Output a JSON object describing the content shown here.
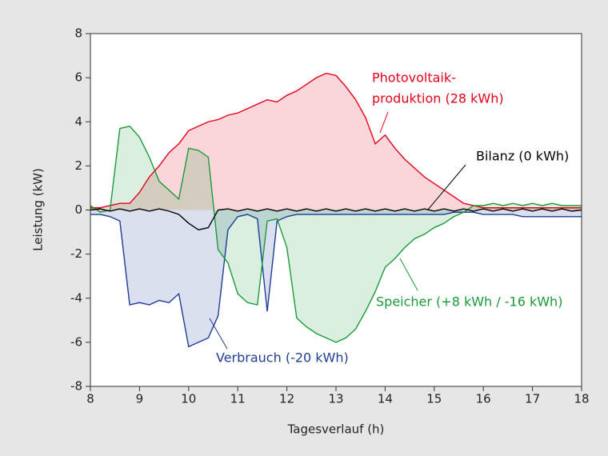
{
  "chart_data": {
    "type": "line",
    "xlabel": "Tagesverlauf (h)",
    "ylabel": "Leistung (kW)",
    "x": [
      8.0,
      8.2,
      8.4,
      8.6,
      8.8,
      9.0,
      9.2,
      9.4,
      9.6,
      9.8,
      10.0,
      10.2,
      10.4,
      10.6,
      10.8,
      11.0,
      11.2,
      11.4,
      11.6,
      11.8,
      12.0,
      12.2,
      12.4,
      12.6,
      12.8,
      13.0,
      13.2,
      13.4,
      13.6,
      13.8,
      14.0,
      14.2,
      14.4,
      14.6,
      14.8,
      15.0,
      15.2,
      15.4,
      15.6,
      15.8,
      16.0,
      16.2,
      16.4,
      16.6,
      16.8,
      17.0,
      17.2,
      17.4,
      17.6,
      17.8,
      18.0
    ],
    "series": [
      {
        "name": "Photovoltaikproduktion",
        "color": "#e3001b",
        "fill": true,
        "values": [
          0.1,
          0.1,
          0.2,
          0.3,
          0.3,
          0.8,
          1.5,
          2.0,
          2.6,
          3.0,
          3.6,
          3.8,
          4.0,
          4.1,
          4.3,
          4.4,
          4.6,
          4.8,
          5.0,
          4.9,
          5.2,
          5.4,
          5.7,
          6.0,
          6.2,
          6.1,
          5.6,
          5.0,
          4.2,
          3.0,
          3.4,
          2.8,
          2.3,
          1.9,
          1.5,
          1.2,
          0.9,
          0.6,
          0.3,
          0.2,
          0.1,
          0.1,
          0.1,
          0.1,
          0.1,
          0.1,
          0.1,
          0.1,
          0.1,
          0.1,
          0.1
        ]
      },
      {
        "name": "Verbrauch",
        "color": "#1f3c96",
        "fill": true,
        "values": [
          -0.2,
          -0.2,
          -0.3,
          -0.5,
          -4.3,
          -4.2,
          -4.3,
          -4.1,
          -4.2,
          -3.8,
          -6.2,
          -6.0,
          -5.8,
          -4.8,
          -0.9,
          -0.3,
          -0.2,
          -0.4,
          -4.6,
          -0.5,
          -0.3,
          -0.2,
          -0.2,
          -0.2,
          -0.2,
          -0.2,
          -0.2,
          -0.2,
          -0.2,
          -0.2,
          -0.2,
          -0.2,
          -0.2,
          -0.2,
          -0.2,
          -0.2,
          -0.2,
          -0.1,
          -0.1,
          -0.1,
          -0.2,
          -0.2,
          -0.2,
          -0.2,
          -0.3,
          -0.3,
          -0.3,
          -0.3,
          -0.3,
          -0.3,
          -0.3
        ]
      },
      {
        "name": "Speicher",
        "color": "#1a9a3a",
        "fill": true,
        "values": [
          0.2,
          -0.1,
          0.0,
          3.7,
          3.8,
          3.3,
          2.4,
          1.3,
          0.9,
          0.5,
          2.8,
          2.7,
          2.4,
          -1.8,
          -2.4,
          -3.8,
          -4.2,
          -4.3,
          -0.5,
          -0.4,
          -1.7,
          -4.9,
          -5.3,
          -5.6,
          -5.8,
          -6.0,
          -5.8,
          -5.4,
          -4.6,
          -3.7,
          -2.6,
          -2.2,
          -1.7,
          -1.3,
          -1.1,
          -0.8,
          -0.6,
          -0.3,
          -0.1,
          0.2,
          0.2,
          0.3,
          0.2,
          0.3,
          0.2,
          0.3,
          0.2,
          0.3,
          0.2,
          0.2,
          0.2
        ]
      },
      {
        "name": "Bilanz",
        "color": "#000000",
        "fill": false,
        "values": [
          0.0,
          0.05,
          -0.05,
          0.05,
          -0.05,
          0.05,
          -0.05,
          0.05,
          -0.05,
          -0.2,
          -0.6,
          -0.9,
          -0.8,
          0.0,
          0.05,
          -0.05,
          0.05,
          -0.05,
          0.05,
          -0.05,
          0.05,
          -0.05,
          0.05,
          -0.05,
          0.05,
          -0.05,
          0.05,
          -0.05,
          0.05,
          -0.05,
          0.05,
          -0.05,
          0.05,
          -0.05,
          0.05,
          -0.05,
          0.05,
          -0.05,
          0.05,
          -0.05,
          0.05,
          -0.05,
          0.05,
          -0.05,
          0.05,
          -0.05,
          0.05,
          -0.05,
          0.05,
          -0.05,
          0.0
        ]
      }
    ],
    "annotations": [
      {
        "lines": [
          "Photovoltaik-",
          "produktion (28 kWh)"
        ],
        "color": "#e3001b"
      },
      {
        "lines": [
          "Bilanz (0 kWh)"
        ],
        "color": "#000000"
      },
      {
        "lines": [
          "Speicher (+8 kWh / -16 kWh)"
        ],
        "color": "#1a9a3a"
      },
      {
        "lines": [
          "Verbrauch (-20 kWh)"
        ],
        "color": "#1f3c96"
      }
    ],
    "xlim": [
      8,
      18
    ],
    "xticks": [
      8,
      9,
      10,
      11,
      12,
      13,
      14,
      15,
      16,
      17,
      18
    ],
    "ylim": [
      -8,
      8
    ],
    "yticks": [
      -8,
      -6,
      -4,
      -2,
      0,
      2,
      4,
      6,
      8
    ]
  }
}
